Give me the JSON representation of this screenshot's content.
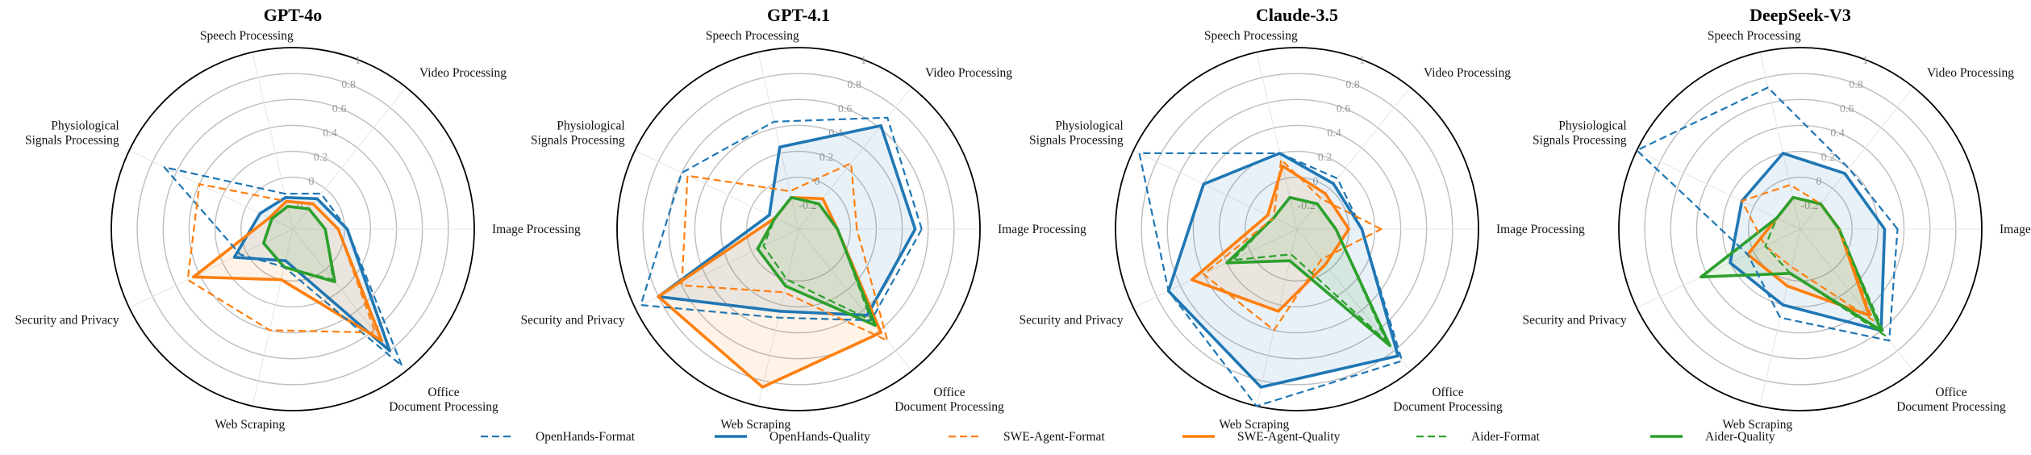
{
  "chart_data": {
    "type": "radar",
    "axes": [
      "Image Processing",
      "Video Processing",
      "Speech Processing",
      "Physiological\nSignals Processing",
      "Security and Privacy",
      "Web Scraping",
      "Office\nDocument Processing"
    ],
    "radial_ticks": [
      "-0.2",
      "0",
      "0.2",
      "0.4",
      "0.6",
      "0.8",
      "1"
    ],
    "rlim": [
      -0.4,
      1
    ],
    "grid": true,
    "legend_position": "bottom-center",
    "series_styles": [
      {
        "name": "OpenHands-Format",
        "color": "#1f77b4",
        "dashed": true,
        "fill": false
      },
      {
        "name": "OpenHands-Quality",
        "color": "#1f77b4",
        "dashed": false,
        "fill": true
      },
      {
        "name": "SWE-Agent-Format",
        "color": "#ff7f0e",
        "dashed": true,
        "fill": false
      },
      {
        "name": "SWE-Agent-Quality",
        "color": "#ff7f0e",
        "dashed": false,
        "fill": true
      },
      {
        "name": "Aider-Format",
        "color": "#2ca02c",
        "dashed": true,
        "fill": false
      },
      {
        "name": "Aider-Quality",
        "color": "#2ca02c",
        "dashed": false,
        "fill": true
      }
    ],
    "panels": [
      {
        "title": "GPT-4o",
        "series": [
          {
            "name": "OpenHands-Format",
            "values": [
              0.02,
              -0.05,
              -0.12,
              0.7,
              0.05,
              -0.1,
              0.95
            ]
          },
          {
            "name": "OpenHands-Quality",
            "values": [
              0.02,
              -0.1,
              -0.15,
              -0.12,
              0.1,
              -0.15,
              0.8
            ]
          },
          {
            "name": "SWE-Agent-Format",
            "values": [
              -0.05,
              -0.15,
              -0.18,
              0.4,
              0.5,
              0.4,
              0.62
            ]
          },
          {
            "name": "SWE-Agent-Quality",
            "values": [
              -0.05,
              -0.15,
              -0.18,
              -0.2,
              0.45,
              0.0,
              0.7
            ]
          },
          {
            "name": "Aider-Format",
            "values": [
              -0.15,
              -0.2,
              -0.22,
              -0.22,
              -0.15,
              -0.1,
              0.1
            ]
          },
          {
            "name": "Aider-Quality",
            "values": [
              -0.15,
              -0.2,
              -0.22,
              -0.22,
              -0.15,
              -0.1,
              0.12
            ]
          }
        ]
      },
      {
        "title": "GPT-4.1",
        "series": [
          {
            "name": "OpenHands-Format",
            "values": [
              0.55,
              0.7,
              0.45,
              0.6,
              0.95,
              0.3,
              0.5
            ]
          },
          {
            "name": "OpenHands-Quality",
            "values": [
              0.5,
              0.62,
              0.25,
              -0.15,
              0.8,
              0.25,
              0.45
            ]
          },
          {
            "name": "SWE-Agent-Format",
            "values": [
              0.05,
              0.25,
              -0.1,
              0.55,
              0.6,
              0.1,
              0.7
            ]
          },
          {
            "name": "SWE-Agent-Quality",
            "values": [
              -0.1,
              -0.1,
              -0.15,
              -0.2,
              0.8,
              0.85,
              0.62
            ]
          },
          {
            "name": "Aider-Format",
            "values": [
              -0.1,
              -0.15,
              -0.15,
              -0.2,
              -0.1,
              0.0,
              0.5
            ]
          },
          {
            "name": "Aider-Quality",
            "values": [
              -0.1,
              -0.15,
              -0.15,
              -0.2,
              -0.05,
              0.05,
              0.55
            ]
          }
        ]
      },
      {
        "title": "Claude-3.5",
        "series": [
          {
            "name": "OpenHands-Format",
            "values": [
              0.1,
              0.1,
              0.2,
              0.95,
              0.7,
              1.0,
              0.9
            ]
          },
          {
            "name": "OpenHands-Quality",
            "values": [
              0.1,
              0.05,
              0.2,
              0.4,
              0.7,
              0.85,
              0.85
            ]
          },
          {
            "name": "SWE-Agent-Format",
            "values": [
              0.25,
              -0.1,
              0.15,
              -0.2,
              0.4,
              0.4,
              -0.1
            ]
          },
          {
            "name": "SWE-Agent-Quality",
            "values": [
              0.0,
              -0.05,
              0.1,
              -0.15,
              0.5,
              0.25,
              -0.05
            ]
          },
          {
            "name": "Aider-Format",
            "values": [
              -0.1,
              -0.15,
              -0.15,
              -0.2,
              0.15,
              -0.2,
              0.7
            ]
          },
          {
            "name": "Aider-Quality",
            "values": [
              -0.1,
              -0.15,
              -0.15,
              -0.2,
              0.2,
              -0.15,
              0.75
            ]
          }
        ]
      },
      {
        "title": "DeepSeek-V3",
        "series": [
          {
            "name": "OpenHands-Format",
            "values": [
              0.35,
              0.2,
              0.72,
              1.0,
              0.05,
              0.3,
              0.7
            ]
          },
          {
            "name": "OpenHands-Quality",
            "values": [
              0.25,
              0.15,
              0.2,
              0.1,
              0.2,
              0.2,
              0.6
            ]
          },
          {
            "name": "SWE-Agent-Format",
            "values": [
              -0.1,
              -0.15,
              -0.05,
              0.1,
              -0.1,
              -0.1,
              0.5
            ]
          },
          {
            "name": "SWE-Agent-Quality",
            "values": [
              -0.1,
              -0.15,
              -0.15,
              -0.2,
              0.05,
              0.05,
              0.45
            ]
          },
          {
            "name": "Aider-Format",
            "values": [
              -0.1,
              -0.15,
              -0.15,
              -0.2,
              -0.1,
              -0.05,
              0.65
            ]
          },
          {
            "name": "Aider-Quality",
            "values": [
              -0.1,
              -0.15,
              -0.15,
              -0.2,
              0.45,
              -0.05,
              0.6
            ]
          }
        ]
      }
    ]
  }
}
